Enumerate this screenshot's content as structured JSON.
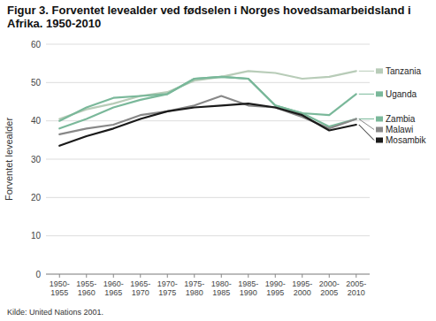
{
  "chart_data": {
    "type": "line",
    "title": "Figur 3. Forventet levealder ved fødselen i Norges hovedsamarbeidsland i\nAfrika. 1950-2010",
    "y_label": "Forventet levealder",
    "annotations": [
      "Kilde: United Nations 2001."
    ],
    "categories": [
      "1950-\n1955",
      "1955-\n1960",
      "1960-\n1965",
      "1965-\n1970",
      "1970-\n1975",
      "1975-\n1980",
      "1980-\n1985",
      "1985-\n1990",
      "1990-\n1995",
      "1995-\n2000",
      "2000-\n2005",
      "2005-\n2010"
    ],
    "series": [
      {
        "name": "Tanzania",
        "color": "#b8ccb8",
        "values": [
          40.5,
          43.0,
          44.5,
          46.5,
          47.5,
          50.5,
          51.5,
          53.0,
          52.5,
          51.0,
          51.5,
          53.0
        ]
      },
      {
        "name": "Uganda",
        "color": "#7ab89a",
        "values": [
          40.0,
          43.5,
          46.0,
          46.5,
          47.0,
          51.0,
          51.5,
          51.0,
          44.0,
          42.0,
          41.5,
          47.0
        ]
      },
      {
        "name": "Zambia",
        "color": "#7ab89a",
        "values": [
          38.0,
          40.5,
          43.5,
          45.5,
          47.0,
          51.0,
          51.5,
          51.0,
          44.0,
          42.0,
          38.5,
          40.5
        ]
      },
      {
        "name": "Malawi",
        "color": "#888888",
        "values": [
          36.5,
          38.0,
          39.0,
          41.5,
          42.5,
          44.0,
          46.5,
          44.0,
          43.5,
          41.0,
          38.0,
          40.5
        ]
      },
      {
        "name": "Mosambik",
        "color": "#1a1a1a",
        "values": [
          33.5,
          36.0,
          38.0,
          40.5,
          42.5,
          43.5,
          44.0,
          44.5,
          43.5,
          41.5,
          37.5,
          39.0
        ]
      }
    ],
    "ylim": [
      0,
      60
    ],
    "yticks": [
      0,
      10,
      20,
      30,
      40,
      50,
      60
    ],
    "grid": true
  }
}
